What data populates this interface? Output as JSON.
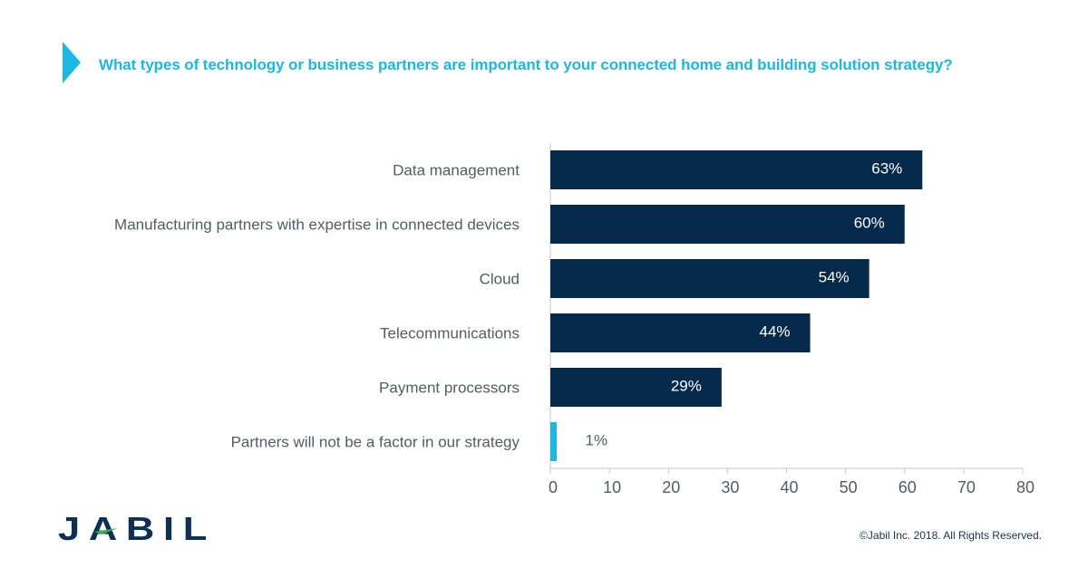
{
  "title": "What types of technology or business partners are important to your connected home and building solution strategy?",
  "footer": {
    "logo_text": "JABIL",
    "copyright": "©Jabil Inc. 2018. All Rights Reserved."
  },
  "colors": {
    "accent": "#1ab8e3",
    "bar": "#062a4b",
    "bar_highlight": "#1ab8e3",
    "text": "#555b63"
  },
  "chart_data": {
    "type": "bar",
    "orientation": "horizontal",
    "categories": [
      "Data management",
      "Manufacturing partners with expertise in connected devices",
      "Cloud",
      "Telecommunications",
      "Payment processors",
      "Partners will not be a factor in our strategy"
    ],
    "values": [
      63,
      60,
      54,
      44,
      29,
      1
    ],
    "value_labels": [
      "63%",
      "60%",
      "54%",
      "44%",
      "29%",
      "1%"
    ],
    "xlim": [
      0,
      80
    ],
    "xticks": [
      0,
      10,
      20,
      30,
      40,
      50,
      60,
      70,
      80
    ],
    "grid": false,
    "legend": "none",
    "xlabel": "",
    "ylabel": ""
  }
}
